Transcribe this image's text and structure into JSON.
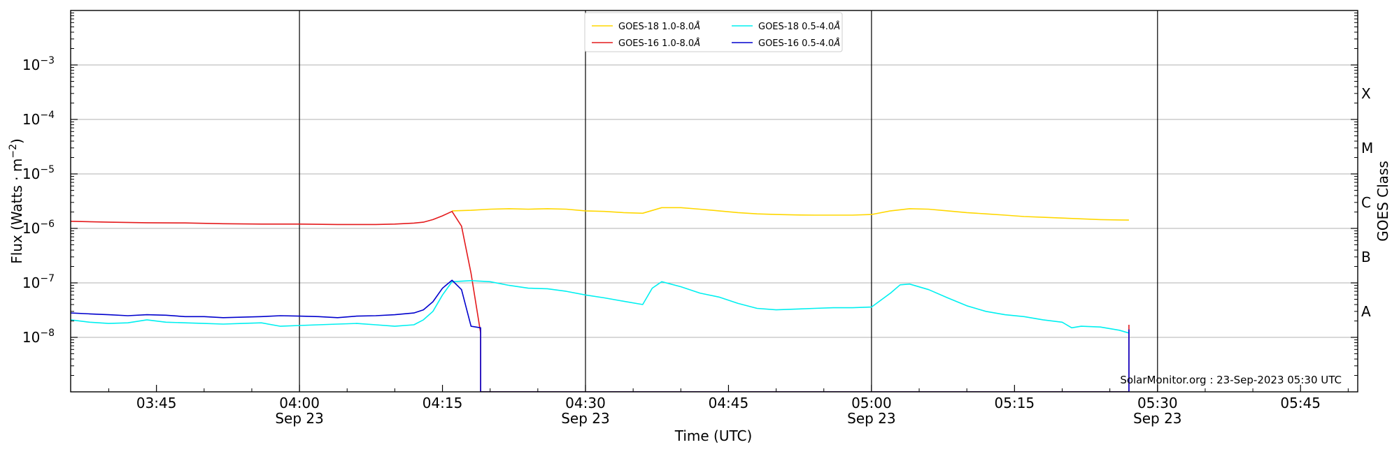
{
  "chart_data": {
    "type": "line",
    "xlabel": "Time (UTC)",
    "ylabel_main": "Flux (Watts · m",
    "ylabel_sup": "−2",
    "ylabel_close": ")",
    "ylabel_right": "GOES Class",
    "y_scale": "log",
    "ylim": [
      1e-09,
      0.01
    ],
    "xlim": [
      "03:36",
      "05:51"
    ],
    "grid": "horizontal at each decade; vertical lines every 30 min",
    "legend_position": "top-center",
    "credit": "SolarMonitor.org : 23-Sep-2023 05:30 UTC",
    "x_ticks": [
      {
        "time": "03:45",
        "label": "03:45",
        "date": ""
      },
      {
        "time": "04:00",
        "label": "04:00",
        "date": "Sep 23"
      },
      {
        "time": "04:15",
        "label": "04:15",
        "date": ""
      },
      {
        "time": "04:30",
        "label": "04:30",
        "date": "Sep 23"
      },
      {
        "time": "04:45",
        "label": "04:45",
        "date": ""
      },
      {
        "time": "05:00",
        "label": "05:00",
        "date": "Sep 23"
      },
      {
        "time": "05:15",
        "label": "05:15",
        "date": ""
      },
      {
        "time": "05:30",
        "label": "05:30",
        "date": "Sep 23"
      },
      {
        "time": "05:45",
        "label": "05:45",
        "date": ""
      }
    ],
    "y_ticks": [
      {
        "value": 1e-08,
        "label": "10",
        "exp": "−8"
      },
      {
        "value": 1e-07,
        "label": "10",
        "exp": "−7"
      },
      {
        "value": 1e-06,
        "label": "10",
        "exp": "−6"
      },
      {
        "value": 1e-05,
        "label": "10",
        "exp": "−5"
      },
      {
        "value": 0.0001,
        "label": "10",
        "exp": "−4"
      },
      {
        "value": 0.001,
        "label": "10",
        "exp": "−3"
      }
    ],
    "class_labels": [
      {
        "value": 3e-08,
        "label": "A"
      },
      {
        "value": 3e-07,
        "label": "B"
      },
      {
        "value": 3e-06,
        "label": "C"
      },
      {
        "value": 3e-05,
        "label": "M"
      },
      {
        "value": 0.0003,
        "label": "X"
      }
    ],
    "series": [
      {
        "name": "GOES-18 1.0-8.0",
        "name_sub": "Å",
        "color": "#ffd700",
        "points": [
          [
            "04:16",
            2.1e-06
          ],
          [
            "04:18",
            2.15e-06
          ],
          [
            "04:20",
            2.25e-06
          ],
          [
            "04:22",
            2.3e-06
          ],
          [
            "04:24",
            2.25e-06
          ],
          [
            "04:26",
            2.3e-06
          ],
          [
            "04:28",
            2.25e-06
          ],
          [
            "04:30",
            2.1e-06
          ],
          [
            "04:32",
            2.05e-06
          ],
          [
            "04:34",
            1.95e-06
          ],
          [
            "04:36",
            1.9e-06
          ],
          [
            "04:38",
            2.4e-06
          ],
          [
            "04:40",
            2.4e-06
          ],
          [
            "04:42",
            2.25e-06
          ],
          [
            "04:44",
            2.1e-06
          ],
          [
            "04:46",
            1.95e-06
          ],
          [
            "04:48",
            1.85e-06
          ],
          [
            "04:50",
            1.8e-06
          ],
          [
            "04:52",
            1.77e-06
          ],
          [
            "04:54",
            1.75e-06
          ],
          [
            "04:56",
            1.75e-06
          ],
          [
            "04:58",
            1.75e-06
          ],
          [
            "05:00",
            1.8e-06
          ],
          [
            "05:02",
            2.1e-06
          ],
          [
            "05:04",
            2.3e-06
          ],
          [
            "05:06",
            2.25e-06
          ],
          [
            "05:08",
            2.1e-06
          ],
          [
            "05:10",
            1.95e-06
          ],
          [
            "05:12",
            1.85e-06
          ],
          [
            "05:14",
            1.75e-06
          ],
          [
            "05:16",
            1.65e-06
          ],
          [
            "05:18",
            1.6e-06
          ],
          [
            "05:20",
            1.55e-06
          ],
          [
            "05:22",
            1.5e-06
          ],
          [
            "05:24",
            1.45e-06
          ],
          [
            "05:26",
            1.43e-06
          ],
          [
            "05:27",
            1.42e-06
          ]
        ]
      },
      {
        "name": "GOES-16 1.0-8.0",
        "name_sub": "Å",
        "color": "#e41a1c",
        "points": [
          [
            "03:36",
            1.35e-06
          ],
          [
            "03:40",
            1.3e-06
          ],
          [
            "03:44",
            1.27e-06
          ],
          [
            "03:48",
            1.26e-06
          ],
          [
            "03:52",
            1.22e-06
          ],
          [
            "03:56",
            1.2e-06
          ],
          [
            "04:00",
            1.2e-06
          ],
          [
            "04:04",
            1.18e-06
          ],
          [
            "04:08",
            1.18e-06
          ],
          [
            "04:10",
            1.2e-06
          ],
          [
            "04:12",
            1.25e-06
          ],
          [
            "04:13",
            1.3e-06
          ],
          [
            "04:14",
            1.45e-06
          ],
          [
            "04:15",
            1.7e-06
          ],
          [
            "04:16",
            2.05e-06
          ],
          [
            "04:17",
            1.1e-06
          ],
          [
            "04:18",
            1.5e-07
          ],
          [
            "04:19",
            1.2e-08
          ],
          [
            "04:19",
            1e-09
          ],
          [
            "05:27",
            1e-09
          ],
          [
            "05:27",
            1.7e-08
          ]
        ]
      },
      {
        "name": "GOES-18 0.5-4.0",
        "name_sub": "Å",
        "color": "#00f0f0",
        "points": [
          [
            "03:36",
            2.1e-08
          ],
          [
            "03:38",
            1.9e-08
          ],
          [
            "03:40",
            1.8e-08
          ],
          [
            "03:42",
            1.85e-08
          ],
          [
            "03:44",
            2.1e-08
          ],
          [
            "03:46",
            1.9e-08
          ],
          [
            "03:48",
            1.85e-08
          ],
          [
            "03:50",
            1.8e-08
          ],
          [
            "03:52",
            1.75e-08
          ],
          [
            "03:54",
            1.8e-08
          ],
          [
            "03:56",
            1.85e-08
          ],
          [
            "03:58",
            1.6e-08
          ],
          [
            "04:00",
            1.65e-08
          ],
          [
            "04:02",
            1.7e-08
          ],
          [
            "04:04",
            1.75e-08
          ],
          [
            "04:06",
            1.8e-08
          ],
          [
            "04:08",
            1.7e-08
          ],
          [
            "04:10",
            1.6e-08
          ],
          [
            "04:12",
            1.7e-08
          ],
          [
            "04:13",
            2.1e-08
          ],
          [
            "04:14",
            3e-08
          ],
          [
            "04:15",
            6e-08
          ],
          [
            "04:16",
            1.05e-07
          ],
          [
            "04:18",
            1.1e-07
          ],
          [
            "04:20",
            1.05e-07
          ],
          [
            "04:22",
            9e-08
          ],
          [
            "04:24",
            8e-08
          ],
          [
            "04:26",
            7.8e-08
          ],
          [
            "04:28",
            7e-08
          ],
          [
            "04:30",
            6e-08
          ],
          [
            "04:32",
            5.3e-08
          ],
          [
            "04:34",
            4.6e-08
          ],
          [
            "04:36",
            4e-08
          ],
          [
            "04:37",
            8e-08
          ],
          [
            "04:38",
            1.05e-07
          ],
          [
            "04:40",
            8.5e-08
          ],
          [
            "04:42",
            6.5e-08
          ],
          [
            "04:44",
            5.5e-08
          ],
          [
            "04:46",
            4.2e-08
          ],
          [
            "04:48",
            3.4e-08
          ],
          [
            "04:50",
            3.2e-08
          ],
          [
            "04:52",
            3.3e-08
          ],
          [
            "04:54",
            3.4e-08
          ],
          [
            "04:56",
            3.5e-08
          ],
          [
            "04:58",
            3.5e-08
          ],
          [
            "05:00",
            3.6e-08
          ],
          [
            "05:02",
            6.5e-08
          ],
          [
            "05:03",
            9.2e-08
          ],
          [
            "05:04",
            9.5e-08
          ],
          [
            "05:06",
            7.5e-08
          ],
          [
            "05:08",
            5.3e-08
          ],
          [
            "05:10",
            3.8e-08
          ],
          [
            "05:12",
            3e-08
          ],
          [
            "05:14",
            2.6e-08
          ],
          [
            "05:16",
            2.4e-08
          ],
          [
            "05:18",
            2.1e-08
          ],
          [
            "05:20",
            1.9e-08
          ],
          [
            "05:21",
            1.5e-08
          ],
          [
            "05:22",
            1.6e-08
          ],
          [
            "05:24",
            1.55e-08
          ],
          [
            "05:26",
            1.35e-08
          ],
          [
            "05:27",
            1.2e-08
          ]
        ]
      },
      {
        "name": "GOES-16 0.5-4.0",
        "name_sub": "Å",
        "color": "#0000cd",
        "points": [
          [
            "03:36",
            2.8e-08
          ],
          [
            "03:38",
            2.7e-08
          ],
          [
            "03:40",
            2.6e-08
          ],
          [
            "03:42",
            2.5e-08
          ],
          [
            "03:44",
            2.6e-08
          ],
          [
            "03:46",
            2.55e-08
          ],
          [
            "03:48",
            2.4e-08
          ],
          [
            "03:50",
            2.4e-08
          ],
          [
            "03:52",
            2.3e-08
          ],
          [
            "03:54",
            2.35e-08
          ],
          [
            "03:56",
            2.4e-08
          ],
          [
            "03:58",
            2.5e-08
          ],
          [
            "04:00",
            2.45e-08
          ],
          [
            "04:02",
            2.4e-08
          ],
          [
            "04:04",
            2.3e-08
          ],
          [
            "04:06",
            2.45e-08
          ],
          [
            "04:08",
            2.5e-08
          ],
          [
            "04:10",
            2.6e-08
          ],
          [
            "04:12",
            2.8e-08
          ],
          [
            "04:13",
            3.2e-08
          ],
          [
            "04:14",
            4.5e-08
          ],
          [
            "04:15",
            8e-08
          ],
          [
            "04:16",
            1.12e-07
          ],
          [
            "04:17",
            7.5e-08
          ],
          [
            "04:18",
            1.6e-08
          ],
          [
            "04:19",
            1.5e-08
          ],
          [
            "04:19",
            1e-09
          ],
          [
            "05:27",
            1e-09
          ],
          [
            "05:27",
            1.4e-08
          ]
        ]
      }
    ]
  }
}
